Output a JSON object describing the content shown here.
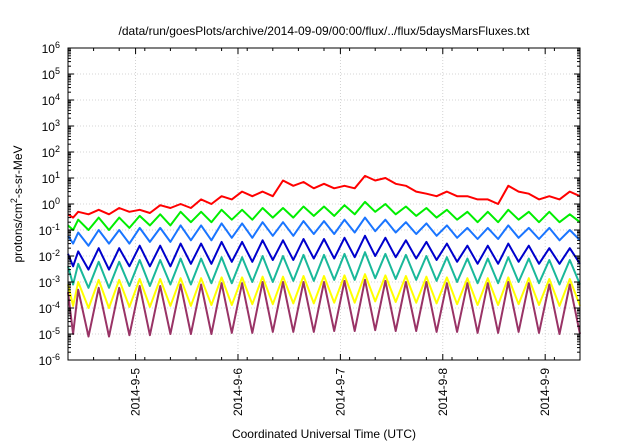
{
  "chart_data": {
    "type": "line",
    "title": "/data/run/goesPlots/archive/2014-09-09/00:00/flux/../flux/5daysMarsFluxes.txt",
    "xlabel": "Coordinated Universal Time (UTC)",
    "ylabel_parts": {
      "prefix": "protons/cm",
      "sup": "2",
      "suffix": "-s-sr-MeV"
    },
    "x_range_days": [
      0,
      5
    ],
    "x_ticks": [
      {
        "day": 0.66,
        "label": "2014-9-5"
      },
      {
        "day": 1.66,
        "label": "2014-9-6"
      },
      {
        "day": 2.66,
        "label": "2014-9-7"
      },
      {
        "day": 3.66,
        "label": "2014-9-8"
      },
      {
        "day": 4.66,
        "label": "2014-9-9"
      }
    ],
    "y_scale": "log",
    "y_exponent_range": [
      -6,
      6
    ],
    "y_tick_labels": [
      {
        "base": "10",
        "exp": "-6"
      },
      {
        "base": "10",
        "exp": "-5"
      },
      {
        "base": "10",
        "exp": "-4"
      },
      {
        "base": "10",
        "exp": "-3"
      },
      {
        "base": "10",
        "exp": "-2"
      },
      {
        "base": "10",
        "exp": "-1"
      },
      {
        "base": "10",
        "exp": "0"
      },
      {
        "base": "10",
        "exp": "1"
      },
      {
        "base": "10",
        "exp": "2"
      },
      {
        "base": "10",
        "exp": "3"
      },
      {
        "base": "10",
        "exp": "4"
      },
      {
        "base": "10",
        "exp": "5"
      },
      {
        "base": "10",
        "exp": "6"
      }
    ],
    "grid": true,
    "series": [
      {
        "color": "#ff0000",
        "x": [
          0,
          0.05,
          0.1,
          0.2,
          0.3,
          0.4,
          0.5,
          0.6,
          0.7,
          0.8,
          0.9,
          1,
          1.1,
          1.2,
          1.3,
          1.4,
          1.5,
          1.6,
          1.7,
          1.8,
          1.9,
          2,
          2.1,
          2.2,
          2.3,
          2.4,
          2.5,
          2.6,
          2.7,
          2.8,
          2.9,
          3,
          3.1,
          3.2,
          3.3,
          3.4,
          3.5,
          3.6,
          3.7,
          3.8,
          3.9,
          4,
          4.1,
          4.2,
          4.3,
          4.4,
          4.5,
          4.6,
          4.7,
          4.8,
          4.9,
          5
        ],
        "y": [
          0.4,
          0.3,
          0.5,
          0.4,
          0.6,
          0.4,
          0.7,
          0.5,
          0.6,
          0.45,
          0.9,
          0.7,
          1.0,
          0.7,
          1.5,
          1.0,
          2.0,
          1.5,
          3.0,
          2.0,
          3.0,
          2.0,
          8.0,
          5.0,
          7.0,
          4.0,
          6.0,
          4.0,
          5.0,
          4.0,
          12.0,
          8.0,
          10.0,
          6.0,
          5.0,
          3.0,
          2.5,
          2.0,
          3.0,
          2.0,
          2.0,
          1.5,
          1.5,
          1.0,
          5.0,
          3.0,
          2.5,
          1.5,
          2.0,
          1.5,
          3.0,
          2.0
        ]
      },
      {
        "color": "#00ee00",
        "x": [
          0,
          0.05,
          0.1,
          0.2,
          0.3,
          0.4,
          0.5,
          0.6,
          0.7,
          0.8,
          0.9,
          1,
          1.1,
          1.2,
          1.3,
          1.4,
          1.5,
          1.6,
          1.7,
          1.8,
          1.9,
          2,
          2.1,
          2.2,
          2.3,
          2.4,
          2.5,
          2.6,
          2.7,
          2.8,
          2.9,
          3,
          3.1,
          3.2,
          3.3,
          3.4,
          3.5,
          3.6,
          3.7,
          3.8,
          3.9,
          4,
          4.1,
          4.2,
          4.3,
          4.4,
          4.5,
          4.6,
          4.7,
          4.8,
          4.9,
          5
        ],
        "y": [
          0.15,
          0.1,
          0.25,
          0.1,
          0.3,
          0.1,
          0.3,
          0.12,
          0.35,
          0.15,
          0.4,
          0.15,
          0.5,
          0.2,
          0.5,
          0.2,
          0.6,
          0.25,
          0.6,
          0.25,
          0.7,
          0.3,
          0.7,
          0.3,
          0.8,
          0.35,
          0.8,
          0.35,
          0.9,
          0.4,
          1.2,
          0.5,
          1.0,
          0.4,
          0.8,
          0.35,
          0.7,
          0.3,
          0.6,
          0.25,
          0.5,
          0.2,
          0.5,
          0.2,
          0.6,
          0.25,
          0.5,
          0.2,
          0.5,
          0.2,
          0.4,
          0.2
        ]
      },
      {
        "color": "#1a75ff",
        "x": [
          0,
          0.05,
          0.1,
          0.2,
          0.3,
          0.4,
          0.5,
          0.6,
          0.7,
          0.8,
          0.9,
          1,
          1.1,
          1.2,
          1.3,
          1.4,
          1.5,
          1.6,
          1.7,
          1.8,
          1.9,
          2,
          2.1,
          2.2,
          2.3,
          2.4,
          2.5,
          2.6,
          2.7,
          2.8,
          2.9,
          3,
          3.1,
          3.2,
          3.3,
          3.4,
          3.5,
          3.6,
          3.7,
          3.8,
          3.9,
          4,
          4.1,
          4.2,
          4.3,
          4.4,
          4.5,
          4.6,
          4.7,
          4.8,
          4.9,
          5
        ],
        "y": [
          0.06,
          0.03,
          0.08,
          0.025,
          0.1,
          0.03,
          0.1,
          0.03,
          0.12,
          0.035,
          0.12,
          0.035,
          0.15,
          0.04,
          0.15,
          0.04,
          0.18,
          0.05,
          0.18,
          0.05,
          0.2,
          0.06,
          0.2,
          0.06,
          0.22,
          0.07,
          0.22,
          0.07,
          0.25,
          0.08,
          0.3,
          0.09,
          0.25,
          0.08,
          0.2,
          0.07,
          0.18,
          0.06,
          0.15,
          0.05,
          0.12,
          0.045,
          0.12,
          0.045,
          0.15,
          0.05,
          0.12,
          0.045,
          0.12,
          0.04,
          0.1,
          0.04
        ]
      },
      {
        "color": "#0000cc",
        "x": [
          0,
          0.05,
          0.1,
          0.2,
          0.3,
          0.4,
          0.5,
          0.6,
          0.7,
          0.8,
          0.9,
          1,
          1.1,
          1.2,
          1.3,
          1.4,
          1.5,
          1.6,
          1.7,
          1.8,
          1.9,
          2,
          2.1,
          2.2,
          2.3,
          2.4,
          2.5,
          2.6,
          2.7,
          2.8,
          2.9,
          3,
          3.1,
          3.2,
          3.3,
          3.4,
          3.5,
          3.6,
          3.7,
          3.8,
          3.9,
          4,
          4.1,
          4.2,
          4.3,
          4.4,
          4.5,
          4.6,
          4.7,
          4.8,
          4.9,
          5
        ],
        "y": [
          0.012,
          0.004,
          0.015,
          0.003,
          0.02,
          0.003,
          0.02,
          0.004,
          0.025,
          0.004,
          0.025,
          0.004,
          0.03,
          0.005,
          0.03,
          0.005,
          0.035,
          0.006,
          0.035,
          0.006,
          0.04,
          0.007,
          0.04,
          0.007,
          0.045,
          0.008,
          0.045,
          0.008,
          0.05,
          0.009,
          0.06,
          0.01,
          0.05,
          0.009,
          0.04,
          0.008,
          0.035,
          0.007,
          0.03,
          0.006,
          0.025,
          0.005,
          0.025,
          0.005,
          0.03,
          0.006,
          0.025,
          0.005,
          0.02,
          0.005,
          0.02,
          0.005
        ]
      },
      {
        "color": "#1ab89a",
        "x": [
          0,
          0.05,
          0.1,
          0.2,
          0.3,
          0.4,
          0.5,
          0.6,
          0.7,
          0.8,
          0.9,
          1,
          1.1,
          1.2,
          1.3,
          1.4,
          1.5,
          1.6,
          1.7,
          1.8,
          1.9,
          2,
          2.1,
          2.2,
          2.3,
          2.4,
          2.5,
          2.6,
          2.7,
          2.8,
          2.9,
          3,
          3.1,
          3.2,
          3.3,
          3.4,
          3.5,
          3.6,
          3.7,
          3.8,
          3.9,
          4,
          4.1,
          4.2,
          4.3,
          4.4,
          4.5,
          4.6,
          4.7,
          4.8,
          4.9,
          5
        ],
        "y": [
          0.004,
          0.0008,
          0.005,
          0.0006,
          0.006,
          0.0006,
          0.006,
          0.0007,
          0.007,
          0.0007,
          0.007,
          0.0008,
          0.008,
          0.0008,
          0.008,
          0.0009,
          0.009,
          0.0009,
          0.009,
          0.001,
          0.01,
          0.001,
          0.01,
          0.0011,
          0.011,
          0.0011,
          0.011,
          0.0012,
          0.012,
          0.0012,
          0.014,
          0.0014,
          0.012,
          0.0013,
          0.011,
          0.0012,
          0.01,
          0.0011,
          0.009,
          0.001,
          0.008,
          0.0009,
          0.008,
          0.0009,
          0.009,
          0.001,
          0.008,
          0.0009,
          0.007,
          0.0008,
          0.007,
          0.0008
        ]
      },
      {
        "color": "#ffff00",
        "x": [
          0,
          0.05,
          0.1,
          0.2,
          0.3,
          0.4,
          0.5,
          0.6,
          0.7,
          0.8,
          0.9,
          1,
          1.1,
          1.2,
          1.3,
          1.4,
          1.5,
          1.6,
          1.7,
          1.8,
          1.9,
          2,
          2.1,
          2.2,
          2.3,
          2.4,
          2.5,
          2.6,
          2.7,
          2.8,
          2.9,
          3,
          3.1,
          3.2,
          3.3,
          3.4,
          3.5,
          3.6,
          3.7,
          3.8,
          3.9,
          4,
          4.1,
          4.2,
          4.3,
          4.4,
          4.5,
          4.6,
          4.7,
          4.8,
          4.9,
          5
        ],
        "y": [
          0.0008,
          0.00012,
          0.001,
          0.0001,
          0.0012,
          0.0001,
          0.0012,
          0.00011,
          0.0013,
          0.00011,
          0.0013,
          0.00012,
          0.0014,
          0.00012,
          0.0014,
          0.00013,
          0.0015,
          0.00013,
          0.0015,
          0.00014,
          0.0016,
          0.00014,
          0.0016,
          0.00015,
          0.0017,
          0.00015,
          0.0017,
          0.00016,
          0.0018,
          0.00016,
          0.002,
          0.00018,
          0.0018,
          0.00017,
          0.0017,
          0.00016,
          0.0016,
          0.00015,
          0.0015,
          0.00014,
          0.0014,
          0.00013,
          0.0014,
          0.00013,
          0.0015,
          0.00014,
          0.0014,
          0.00013,
          0.0013,
          0.00012,
          0.0013,
          0.00012
        ]
      },
      {
        "color": "#993366",
        "x": [
          0,
          0.05,
          0.1,
          0.2,
          0.3,
          0.4,
          0.5,
          0.6,
          0.7,
          0.8,
          0.9,
          1,
          1.1,
          1.2,
          1.3,
          1.4,
          1.5,
          1.6,
          1.7,
          1.8,
          1.9,
          2,
          2.1,
          2.2,
          2.3,
          2.4,
          2.5,
          2.6,
          2.7,
          2.8,
          2.9,
          3,
          3.1,
          3.2,
          3.3,
          3.4,
          3.5,
          3.6,
          3.7,
          3.8,
          3.9,
          4,
          4.1,
          4.2,
          4.3,
          4.4,
          4.5,
          4.6,
          4.7,
          4.8,
          4.9,
          5
        ],
        "y": [
          0.0004,
          1e-05,
          0.0005,
          8e-06,
          0.0006,
          8e-06,
          0.0006,
          9e-06,
          0.0007,
          9e-06,
          0.0007,
          1e-05,
          0.0008,
          1e-05,
          0.0008,
          1e-05,
          0.0009,
          1.1e-05,
          0.0009,
          1.1e-05,
          0.001,
          1.2e-05,
          0.001,
          1.2e-05,
          0.001,
          1.2e-05,
          0.001,
          1.3e-05,
          0.0011,
          1.3e-05,
          0.0012,
          1.4e-05,
          0.0011,
          1.3e-05,
          0.001,
          1.3e-05,
          0.001,
          1.2e-05,
          0.0009,
          1.2e-05,
          0.0009,
          1.1e-05,
          0.0009,
          1.1e-05,
          0.001,
          1.2e-05,
          0.0009,
          1.1e-05,
          0.0008,
          1e-05,
          0.0008,
          1e-05
        ]
      }
    ]
  }
}
